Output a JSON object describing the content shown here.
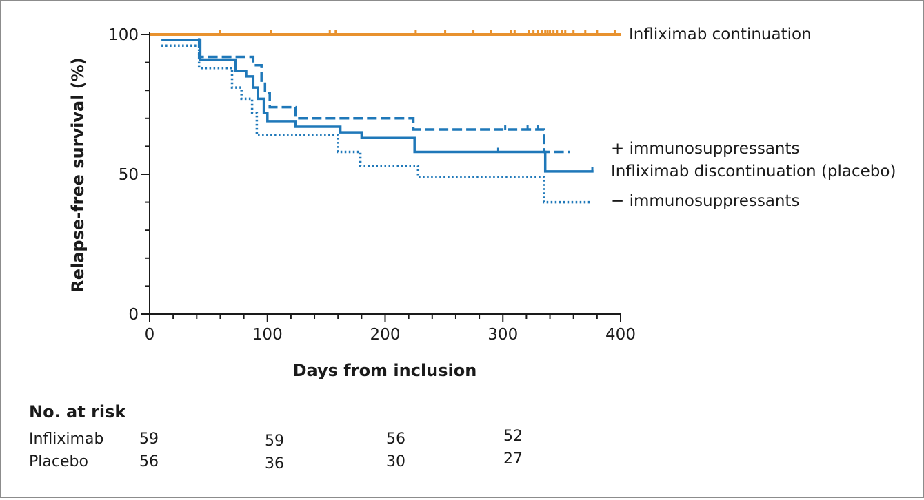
{
  "chart_data": {
    "type": "line",
    "subtype": "kaplan-meier",
    "title": "",
    "xlabel": "Days from inclusion",
    "ylabel": "Relapse-free survival (%)",
    "xlim": [
      0,
      400
    ],
    "ylim": [
      0,
      100
    ],
    "x_ticks": [
      0,
      100,
      200,
      300,
      400
    ],
    "y_ticks": [
      0,
      50,
      100
    ],
    "grid": false,
    "series": [
      {
        "name": "Infliximab continuation",
        "color": "#E8922F",
        "style": "solid",
        "steps": [
          [
            0,
            100
          ],
          [
            400,
            100
          ]
        ],
        "censor_x": [
          60,
          103,
          153,
          158,
          226,
          251,
          275,
          290,
          307,
          310,
          322,
          326,
          330,
          333,
          336,
          338,
          340,
          343,
          346,
          350,
          353,
          360,
          370,
          380,
          395
        ]
      },
      {
        "name": "Infliximab discontinuation (placebo)",
        "color": "#1F78B9",
        "style": "solid",
        "steps": [
          [
            10,
            98
          ],
          [
            43,
            98
          ],
          [
            43,
            91
          ],
          [
            73,
            91
          ],
          [
            73,
            87
          ],
          [
            82,
            87
          ],
          [
            82,
            85
          ],
          [
            88,
            85
          ],
          [
            88,
            81
          ],
          [
            92,
            81
          ],
          [
            92,
            77
          ],
          [
            97,
            77
          ],
          [
            97,
            72
          ],
          [
            100,
            72
          ],
          [
            100,
            69
          ],
          [
            124,
            69
          ],
          [
            124,
            67
          ],
          [
            162,
            67
          ],
          [
            162,
            65
          ],
          [
            180,
            65
          ],
          [
            180,
            63
          ],
          [
            225,
            63
          ],
          [
            225,
            58
          ],
          [
            336,
            58
          ],
          [
            336,
            51
          ],
          [
            377,
            51
          ]
        ],
        "censor_x": [
          296,
          376
        ]
      },
      {
        "name": "+ immunosuppressants",
        "color": "#1F78B9",
        "style": "dashed",
        "steps": [
          [
            10,
            100
          ],
          [
            42,
            100
          ],
          [
            42,
            92
          ],
          [
            88,
            92
          ],
          [
            88,
            89
          ],
          [
            95,
            89
          ],
          [
            95,
            83
          ],
          [
            98,
            83
          ],
          [
            98,
            79
          ],
          [
            102,
            79
          ],
          [
            102,
            74
          ],
          [
            124,
            74
          ],
          [
            124,
            70
          ],
          [
            224,
            70
          ],
          [
            224,
            66
          ],
          [
            335,
            66
          ],
          [
            335,
            58
          ],
          [
            357,
            58
          ]
        ],
        "censor_x": [
          302,
          321,
          330
        ]
      },
      {
        "name": "− immunosuppressants",
        "color": "#1F78B9",
        "style": "dotted",
        "steps": [
          [
            10,
            96
          ],
          [
            42,
            96
          ],
          [
            42,
            88
          ],
          [
            70,
            88
          ],
          [
            70,
            81
          ],
          [
            78,
            81
          ],
          [
            78,
            77
          ],
          [
            87,
            77
          ],
          [
            87,
            72
          ],
          [
            91,
            72
          ],
          [
            91,
            64
          ],
          [
            160,
            64
          ],
          [
            160,
            58
          ],
          [
            179,
            58
          ],
          [
            179,
            53
          ],
          [
            228,
            53
          ],
          [
            228,
            49
          ],
          [
            335,
            49
          ],
          [
            335,
            40
          ],
          [
            375,
            40
          ]
        ],
        "censor_x": []
      }
    ],
    "labels": {
      "continuation": "Infliximab continuation",
      "plus_immuno": "+ immunosuppressants",
      "discontinuation": "Infliximab discontinuation (placebo)",
      "minus_immuno": "− immunosuppressants"
    },
    "risk_table": {
      "heading": "No. at risk",
      "rows": [
        {
          "label": "Infliximab",
          "values": [
            "59",
            "59",
            "56",
            "52"
          ]
        },
        {
          "label": "Placebo",
          "values": [
            "56",
            "36",
            "30",
            "27"
          ]
        }
      ]
    }
  }
}
